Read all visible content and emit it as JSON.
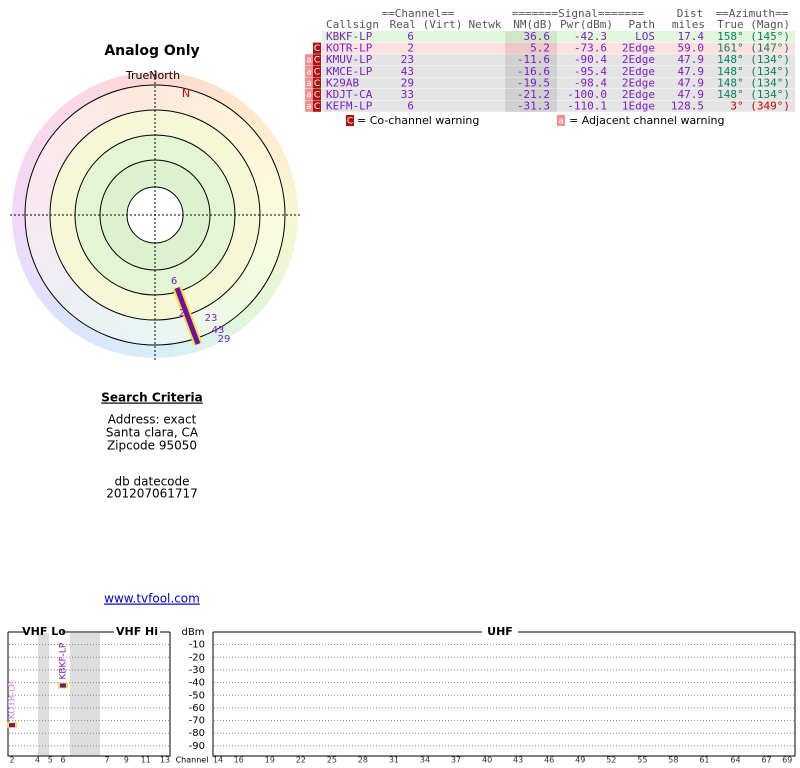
{
  "plot": {
    "title": "Analog Only",
    "north_label": "TrueNorth",
    "north_marker": "N"
  },
  "criteria": {
    "heading": "Search Criteria",
    "lines": [
      "Address: exact",
      "Santa clara, CA",
      "Zipcode 95050"
    ],
    "datecode_label": "db datecode",
    "datecode": "201207061717",
    "link": "www.tvfool.com"
  },
  "table": {
    "group_headers": [
      "==Channel==",
      "=======Signal=======",
      "Dist",
      "==Azimuth=="
    ],
    "headers": [
      "Callsign",
      "Real (Virt)",
      "Netwk",
      "NM(dB)",
      "Pwr(dBm)",
      "Path",
      "miles",
      "True (Magn)"
    ],
    "rows": [
      {
        "warnings": [],
        "callsign": "KBKF-LP",
        "real": "6",
        "nm": "36.6",
        "pwr": "-42.3",
        "path": "LOS",
        "dist": "17.4",
        "azimuth": "158° (145°)"
      },
      {
        "warnings": [
          "C"
        ],
        "callsign": "KOTR-LP",
        "real": "2",
        "nm": "5.2",
        "pwr": "-73.6",
        "path": "2Edge",
        "dist": "59.0",
        "azimuth": "161° (147°)"
      },
      {
        "warnings": [
          "a",
          "C"
        ],
        "callsign": "KMUV-LP",
        "real": "23",
        "nm": "-11.6",
        "pwr": "-90.4",
        "path": "2Edge",
        "dist": "47.9",
        "azimuth": "148° (134°)"
      },
      {
        "warnings": [
          "a",
          "C"
        ],
        "callsign": "KMCE-LP",
        "real": "43",
        "nm": "-16.6",
        "pwr": "-95.4",
        "path": "2Edge",
        "dist": "47.9",
        "azimuth": "148° (134°)"
      },
      {
        "warnings": [
          "a",
          "C"
        ],
        "callsign": "K29AB",
        "real": "29",
        "nm": "-19.5",
        "pwr": "-98.4",
        "path": "2Edge",
        "dist": "47.9",
        "azimuth": "148° (134°)"
      },
      {
        "warnings": [
          "a",
          "C"
        ],
        "callsign": "KDJT-CA",
        "real": "33",
        "nm": "-21.2",
        "pwr": "-100.0",
        "path": "2Edge",
        "dist": "47.9",
        "azimuth": "148° (134°)"
      },
      {
        "warnings": [
          "a",
          "C"
        ],
        "callsign": "KEFM-LP",
        "real": "6",
        "nm": "-31.3",
        "pwr": "-110.1",
        "path": "1Edge",
        "dist": "128.5",
        "azimuth": "3° (349°)"
      }
    ]
  },
  "legend": [
    {
      "key": "C",
      "text": "= Co-channel warning"
    },
    {
      "key": "a",
      "text": "= Adjacent channel warning"
    }
  ],
  "spectrum": {
    "bands": [
      "VHF Lo",
      "VHF Hi",
      "UHF"
    ],
    "y_label": "dBm",
    "x_label": "Channel",
    "ylim": [
      -98,
      0
    ],
    "yticks": [
      -10,
      -20,
      -30,
      -40,
      -50,
      -60,
      -70,
      -80,
      -90
    ],
    "vhf_lo": [
      2,
      4,
      5,
      6
    ],
    "vhf_hi": [
      7,
      9,
      11,
      13
    ],
    "uhf": [
      14,
      16,
      19,
      22,
      25,
      28,
      31,
      34,
      37,
      40,
      43,
      46,
      49,
      52,
      55,
      58,
      61,
      64,
      67,
      69
    ],
    "markers": [
      {
        "channel": 2,
        "pwr": -73.6
      },
      {
        "channel": 6,
        "pwr": -42.3
      }
    ]
  }
}
